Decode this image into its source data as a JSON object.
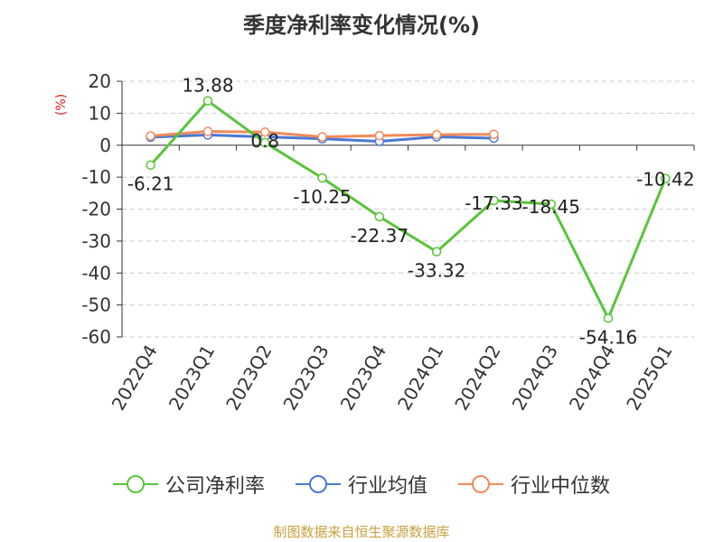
{
  "chart_data": {
    "type": "line",
    "title": "季度净利率变化情况(%)",
    "ylabel": "(%)",
    "categories": [
      "2022Q4",
      "2023Q1",
      "2023Q2",
      "2023Q3",
      "2023Q4",
      "2024Q1",
      "2024Q2",
      "2024Q3",
      "2024Q4",
      "2025Q1"
    ],
    "ylim": [
      -60,
      20
    ],
    "yticks": [
      20,
      10,
      0,
      -10,
      -20,
      -30,
      -40,
      -50,
      -60
    ],
    "grid": true,
    "legend_position": "bottom",
    "series": [
      {
        "name": "公司净利率",
        "color": "#5ac43a",
        "values": [
          -6.21,
          13.88,
          0.8,
          -10.25,
          -22.37,
          -33.32,
          -17.33,
          -18.45,
          -54.16,
          -10.42
        ],
        "labels": [
          "-6.21",
          "13.88",
          "0.8",
          "-10.25",
          "-22.37",
          "-33.32",
          "-17.33",
          "-18.45",
          "-54.16",
          "-10.42"
        ]
      },
      {
        "name": "行业均值",
        "color": "#4a78d4",
        "values": [
          2.5,
          3.2,
          2.6,
          2.0,
          1.2,
          2.6,
          2.2,
          null,
          null,
          null
        ]
      },
      {
        "name": "行业中位数",
        "color": "#f08a5a",
        "values": [
          2.9,
          4.3,
          4.1,
          2.6,
          3.0,
          3.3,
          3.4,
          null,
          null,
          null
        ]
      }
    ]
  },
  "source": "制图数据来自恒生聚源数据库"
}
